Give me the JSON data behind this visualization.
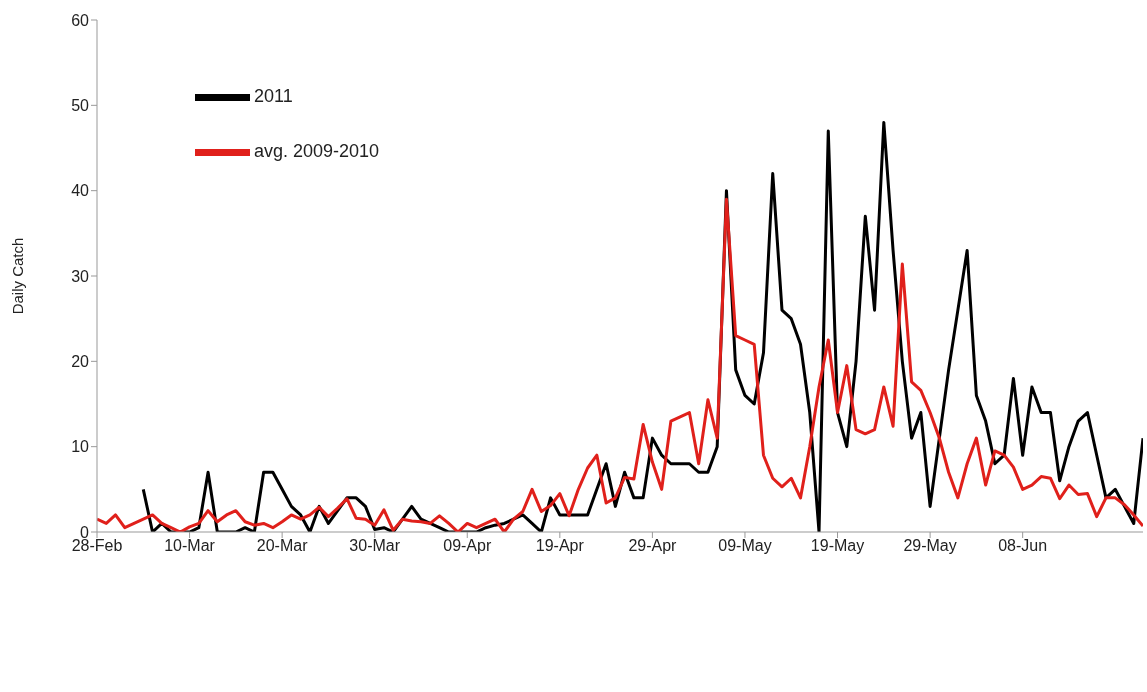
{
  "chart_data": {
    "type": "line",
    "ylabel": "Daily Catch",
    "categories": [
      "28-Feb",
      null,
      null,
      null,
      null,
      null,
      null,
      null,
      null,
      null,
      "10-Mar",
      null,
      null,
      null,
      null,
      null,
      null,
      null,
      null,
      null,
      "20-Mar",
      null,
      null,
      null,
      null,
      null,
      null,
      null,
      null,
      null,
      "30-Mar",
      null,
      null,
      null,
      null,
      null,
      null,
      null,
      null,
      null,
      "09-Apr",
      null,
      null,
      null,
      null,
      null,
      null,
      null,
      null,
      null,
      "19-Apr",
      null,
      null,
      null,
      null,
      null,
      null,
      null,
      null,
      null,
      "29-Apr",
      null,
      null,
      null,
      null,
      null,
      null,
      null,
      null,
      null,
      "09-May",
      null,
      null,
      null,
      null,
      null,
      null,
      null,
      null,
      null,
      "19-May",
      null,
      null,
      null,
      null,
      null,
      null,
      null,
      null,
      null,
      "29-May",
      null,
      null,
      null,
      null,
      null,
      null,
      null,
      null,
      null,
      "08-Jun",
      null,
      null,
      null,
      null,
      null,
      null,
      null,
      null,
      null,
      null,
      null,
      null,
      null
    ],
    "series": [
      {
        "name": "2011",
        "color": "#000000",
        "values": [
          null,
          null,
          null,
          null,
          null,
          5,
          0,
          1,
          0,
          0,
          0,
          0.5,
          7,
          0,
          0,
          0,
          0.5,
          0,
          7,
          7,
          5,
          3,
          2,
          0,
          3,
          1,
          2.5,
          4,
          4,
          3,
          0.3,
          0.5,
          0,
          1.5,
          3,
          1.5,
          1,
          0.5,
          0,
          0,
          0,
          0,
          0.5,
          0.8,
          1,
          1.5,
          2,
          1,
          0,
          4,
          2,
          2,
          2,
          2,
          5,
          8,
          3,
          7,
          4,
          4,
          11,
          9,
          8,
          8,
          8,
          7,
          7,
          10,
          40,
          19,
          16,
          15,
          21,
          42,
          26,
          25,
          22,
          14,
          0,
          47,
          14,
          10,
          20,
          37,
          26,
          48,
          33,
          20,
          11,
          14,
          3,
          11,
          19,
          26,
          33,
          16,
          13,
          8,
          9,
          18,
          9,
          17,
          14,
          14,
          6,
          10,
          13,
          14,
          9,
          4,
          5,
          3,
          1,
          11
        ]
      },
      {
        "name": "avg. 2009-2010",
        "color": "#e0201b",
        "values": [
          1.5,
          1,
          2,
          0.5,
          1,
          1.5,
          2,
          1,
          0.5,
          0,
          0.6,
          1,
          2.5,
          1.2,
          2,
          2.5,
          1.2,
          0.8,
          1,
          0.5,
          1.2,
          2,
          1.5,
          2,
          2.9,
          1.8,
          2.8,
          3.9,
          1.6,
          1.5,
          0.8,
          2.6,
          0.2,
          1.5,
          1.3,
          1.2,
          1,
          1.9,
          1,
          0,
          1,
          0.5,
          1,
          1.5,
          0,
          1.5,
          2.4,
          5,
          2.4,
          3.1,
          4.5,
          1.9,
          5,
          7.5,
          9,
          3.4,
          4,
          6.4,
          6.2,
          12.6,
          8.2,
          5,
          13,
          13.5,
          14,
          8,
          15.5,
          11,
          39,
          23,
          22.5,
          22,
          9,
          6.3,
          5.3,
          6.3,
          4,
          10,
          17,
          22.5,
          14,
          19.5,
          12,
          11.5,
          12,
          17,
          12.4,
          31.4,
          17.6,
          16.6,
          14,
          11,
          7,
          4,
          8,
          11,
          5.5,
          9.5,
          9,
          7.6,
          5,
          5.5,
          6.5,
          6.3,
          3.9,
          5.5,
          4.4,
          4.5,
          1.8,
          4,
          4,
          3.2,
          2,
          0.7
        ]
      }
    ],
    "ylim": [
      0,
      60
    ],
    "yticks": [
      0,
      10,
      20,
      30,
      40,
      50,
      60
    ],
    "grid": false,
    "legend": "top left",
    "marker": "none",
    "line_style": "solid"
  }
}
